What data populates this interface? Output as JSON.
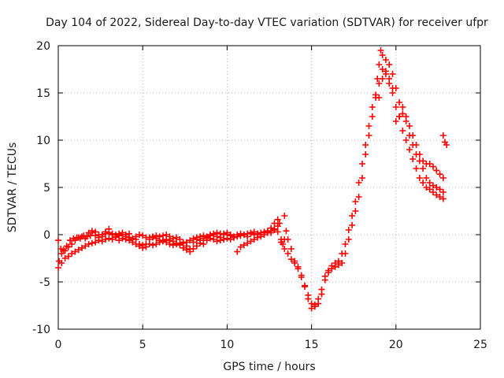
{
  "chart_data": {
    "type": "scatter",
    "title": "Day 104 of 2022, Sidereal Day-to-day VTEC variation (SDTVAR) for receiver ufpr",
    "xlabel": "GPS time / hours",
    "ylabel": "SDTVAR / TECUs",
    "xlim": [
      0,
      25
    ],
    "ylim": [
      -10,
      20
    ],
    "xticks": [
      0,
      5,
      10,
      15,
      20,
      25
    ],
    "yticks": [
      -10,
      -5,
      0,
      5,
      10,
      15,
      20
    ],
    "grid": true,
    "marker": "plus",
    "color": "#ff0000",
    "series": [
      {
        "points": [
          [
            0.0,
            -0.6
          ],
          [
            0.05,
            -2.8
          ],
          [
            0.15,
            -1.5
          ],
          [
            0.3,
            -1.6
          ],
          [
            0.5,
            -1.2
          ],
          [
            0.7,
            -0.6
          ],
          [
            0.9,
            -0.4
          ],
          [
            1.1,
            -0.3
          ],
          [
            1.3,
            -0.4
          ],
          [
            1.5,
            -0.1
          ],
          [
            1.7,
            -0.2
          ],
          [
            1.9,
            -0.1
          ],
          [
            2.0,
            0.4
          ],
          [
            2.2,
            0.3
          ],
          [
            2.4,
            0.0
          ],
          [
            2.6,
            -0.2
          ],
          [
            2.8,
            0.1
          ],
          [
            3.0,
            0.6
          ],
          [
            3.2,
            0.1
          ],
          [
            3.4,
            0.0
          ],
          [
            3.6,
            -0.1
          ],
          [
            3.8,
            0.0
          ],
          [
            4.0,
            -0.2
          ],
          [
            4.2,
            0.1
          ],
          [
            4.4,
            -0.5
          ],
          [
            4.6,
            -0.5
          ],
          [
            4.8,
            -1.0
          ],
          [
            5.0,
            -1.1
          ],
          [
            5.2,
            -1.3
          ],
          [
            5.4,
            -1.0
          ],
          [
            5.6,
            -1.1
          ],
          [
            5.8,
            -1.0
          ],
          [
            6.0,
            -0.8
          ],
          [
            6.2,
            -0.6
          ],
          [
            6.4,
            -0.5
          ],
          [
            6.6,
            -0.6
          ],
          [
            6.8,
            -0.7
          ],
          [
            7.0,
            -0.9
          ],
          [
            7.2,
            -1.1
          ],
          [
            7.4,
            -1.4
          ],
          [
            7.6,
            -1.6
          ],
          [
            7.8,
            -1.8
          ],
          [
            8.0,
            -1.5
          ],
          [
            8.2,
            -1.2
          ],
          [
            8.4,
            -0.6
          ],
          [
            8.6,
            -0.4
          ],
          [
            8.8,
            -0.3
          ],
          [
            9.0,
            -0.1
          ],
          [
            9.2,
            0.0
          ],
          [
            9.4,
            0.2
          ],
          [
            9.6,
            0.1
          ],
          [
            9.8,
            0.0
          ],
          [
            10.0,
            0.2
          ],
          [
            10.2,
            0.0
          ],
          [
            10.4,
            -0.3
          ],
          [
            10.6,
            -0.2
          ],
          [
            10.8,
            -0.1
          ],
          [
            11.0,
            0.0
          ],
          [
            11.2,
            0.1
          ],
          [
            11.4,
            0.2
          ],
          [
            11.6,
            0.0
          ],
          [
            11.8,
            0.1
          ],
          [
            12.0,
            0.2
          ],
          [
            12.2,
            0.3
          ],
          [
            12.4,
            0.4
          ],
          [
            12.6,
            0.7
          ],
          [
            12.8,
            1.2
          ],
          [
            13.0,
            1.6
          ],
          [
            13.1,
            1.2
          ],
          [
            13.2,
            -0.5
          ],
          [
            13.3,
            -1.0
          ],
          [
            13.4,
            -0.5
          ],
          [
            13.5,
            0.4
          ],
          [
            13.6,
            -0.5
          ],
          [
            13.8,
            -1.5
          ],
          [
            14.0,
            -2.8
          ],
          [
            14.2,
            -3.4
          ],
          [
            14.4,
            -4.3
          ],
          [
            14.6,
            -5.4
          ],
          [
            14.8,
            -6.4
          ],
          [
            15.0,
            -7.3
          ],
          [
            15.2,
            -7.6
          ],
          [
            15.4,
            -7.3
          ],
          [
            15.6,
            -6.3
          ],
          [
            15.8,
            -4.8
          ],
          [
            16.0,
            -4.0
          ],
          [
            16.2,
            -3.6
          ],
          [
            16.4,
            -3.4
          ],
          [
            16.6,
            -3.2
          ],
          [
            16.8,
            -3.0
          ],
          [
            17.0,
            -2.0
          ],
          [
            17.2,
            -0.5
          ],
          [
            17.4,
            1.0
          ],
          [
            17.6,
            2.5
          ],
          [
            17.8,
            4.0
          ],
          [
            18.0,
            6.0
          ],
          [
            18.2,
            8.5
          ],
          [
            18.4,
            10.5
          ],
          [
            18.6,
            12.5
          ],
          [
            18.8,
            14.5
          ],
          [
            18.9,
            16.5
          ],
          [
            19.0,
            18.0
          ],
          [
            19.1,
            19.5
          ],
          [
            19.2,
            19.0
          ],
          [
            19.4,
            17.0
          ],
          [
            19.6,
            16.0
          ],
          [
            19.8,
            15.0
          ],
          [
            20.0,
            13.5
          ],
          [
            20.2,
            12.5
          ],
          [
            20.4,
            11.0
          ],
          [
            20.6,
            10.0
          ],
          [
            20.8,
            9.0
          ],
          [
            21.0,
            8.0
          ],
          [
            21.2,
            7.0
          ],
          [
            21.4,
            6.0
          ],
          [
            21.6,
            5.5
          ],
          [
            21.8,
            5.0
          ],
          [
            22.0,
            4.8
          ],
          [
            22.2,
            4.5
          ],
          [
            22.4,
            4.2
          ],
          [
            22.6,
            4.0
          ],
          [
            22.8,
            3.8
          ]
        ]
      },
      {
        "points": [
          [
            0.0,
            -3.5
          ],
          [
            0.2,
            -3.0
          ],
          [
            0.4,
            -2.5
          ],
          [
            0.6,
            -2.3
          ],
          [
            0.8,
            -2.0
          ],
          [
            1.0,
            -1.8
          ],
          [
            1.2,
            -1.6
          ],
          [
            1.4,
            -1.4
          ],
          [
            1.6,
            -1.2
          ],
          [
            1.8,
            -1.0
          ],
          [
            2.0,
            -0.9
          ],
          [
            2.2,
            -0.8
          ],
          [
            2.4,
            -0.6
          ],
          [
            2.6,
            -0.7
          ],
          [
            2.8,
            -0.5
          ],
          [
            3.0,
            -0.4
          ],
          [
            3.2,
            -0.5
          ],
          [
            3.4,
            -0.3
          ],
          [
            3.6,
            -0.6
          ],
          [
            3.8,
            -0.4
          ],
          [
            4.0,
            -0.5
          ],
          [
            4.2,
            -0.6
          ],
          [
            4.4,
            -0.4
          ],
          [
            4.6,
            -0.2
          ],
          [
            4.8,
            0.0
          ],
          [
            5.0,
            -0.1
          ],
          [
            5.2,
            -0.3
          ],
          [
            5.4,
            -0.3
          ],
          [
            5.6,
            -0.3
          ],
          [
            5.8,
            -0.4
          ],
          [
            6.0,
            -0.6
          ],
          [
            6.2,
            -0.7
          ],
          [
            6.4,
            -0.8
          ],
          [
            6.6,
            -1.0
          ],
          [
            6.8,
            -1.1
          ],
          [
            7.0,
            -1.0
          ],
          [
            7.2,
            -1.0
          ],
          [
            7.4,
            -0.9
          ],
          [
            7.6,
            -0.8
          ],
          [
            7.8,
            -0.6
          ],
          [
            8.0,
            -0.4
          ],
          [
            8.2,
            -0.3
          ],
          [
            8.4,
            -0.2
          ],
          [
            8.6,
            -0.1
          ],
          [
            8.8,
            -0.2
          ],
          [
            9.0,
            -0.4
          ],
          [
            9.2,
            -0.5
          ],
          [
            9.4,
            -0.7
          ],
          [
            9.6,
            -0.6
          ],
          [
            9.8,
            -0.5
          ],
          [
            10.0,
            -0.4
          ],
          [
            10.2,
            -0.5
          ],
          [
            10.4,
            -0.3
          ],
          [
            10.6,
            -1.8
          ],
          [
            10.8,
            -1.3
          ],
          [
            11.0,
            -1.1
          ],
          [
            11.2,
            -0.9
          ],
          [
            11.4,
            -0.7
          ],
          [
            11.6,
            -0.5
          ],
          [
            11.8,
            -0.3
          ],
          [
            12.0,
            -0.2
          ],
          [
            12.2,
            0.0
          ],
          [
            12.4,
            0.2
          ],
          [
            12.6,
            0.4
          ],
          [
            12.8,
            0.5
          ],
          [
            13.0,
            0.3
          ],
          [
            13.2,
            -0.8
          ],
          [
            13.4,
            -1.5
          ],
          [
            13.6,
            -2.0
          ],
          [
            13.8,
            -2.6
          ],
          [
            14.0,
            -3.0
          ],
          [
            14.2,
            -3.6
          ],
          [
            14.4,
            -4.5
          ],
          [
            14.6,
            -5.5
          ],
          [
            14.8,
            -6.8
          ],
          [
            15.0,
            -7.8
          ],
          [
            15.2,
            -7.4
          ],
          [
            15.4,
            -6.8
          ],
          [
            15.6,
            -5.8
          ],
          [
            15.8,
            -4.4
          ],
          [
            16.0,
            -3.8
          ],
          [
            16.2,
            -3.3
          ],
          [
            16.4,
            -3.0
          ],
          [
            16.6,
            -2.8
          ],
          [
            16.8,
            -2.0
          ],
          [
            17.0,
            -1.0
          ],
          [
            17.2,
            0.5
          ],
          [
            17.4,
            2.0
          ],
          [
            17.6,
            3.5
          ],
          [
            17.8,
            5.5
          ],
          [
            18.0,
            7.5
          ],
          [
            18.2,
            9.5
          ],
          [
            18.4,
            11.5
          ],
          [
            18.6,
            13.5
          ],
          [
            18.8,
            14.8
          ],
          [
            19.0,
            16.0
          ],
          [
            19.2,
            17.5
          ],
          [
            19.4,
            18.5
          ],
          [
            19.6,
            18.0
          ],
          [
            19.8,
            17.0
          ],
          [
            20.0,
            15.5
          ],
          [
            20.2,
            14.0
          ],
          [
            20.4,
            13.5
          ],
          [
            20.6,
            12.5
          ],
          [
            20.8,
            11.5
          ],
          [
            21.0,
            10.5
          ],
          [
            21.2,
            9.5
          ],
          [
            21.4,
            8.5
          ],
          [
            21.6,
            7.8
          ],
          [
            21.8,
            7.5
          ],
          [
            22.0,
            7.5
          ],
          [
            22.2,
            7.2
          ],
          [
            22.4,
            6.8
          ],
          [
            22.6,
            6.4
          ],
          [
            22.8,
            6.0
          ]
        ]
      },
      {
        "points": [
          [
            0.2,
            -2.0
          ],
          [
            0.4,
            -1.7
          ],
          [
            0.6,
            -1.3
          ],
          [
            0.8,
            -1.0
          ],
          [
            1.0,
            -0.6
          ],
          [
            1.2,
            -0.3
          ],
          [
            1.4,
            -0.2
          ],
          [
            1.6,
            -0.4
          ],
          [
            1.8,
            0.2
          ],
          [
            2.0,
            0.2
          ],
          [
            2.2,
            -0.1
          ],
          [
            2.4,
            -0.3
          ],
          [
            2.6,
            0.0
          ],
          [
            2.8,
            0.3
          ],
          [
            3.0,
            0.2
          ],
          [
            3.2,
            0.0
          ],
          [
            3.4,
            -0.2
          ],
          [
            3.6,
            0.1
          ],
          [
            3.8,
            0.2
          ],
          [
            4.0,
            0.0
          ],
          [
            4.2,
            -0.3
          ],
          [
            4.4,
            -0.8
          ],
          [
            4.6,
            -1.0
          ],
          [
            4.8,
            -1.2
          ],
          [
            5.0,
            -1.4
          ],
          [
            5.2,
            -1.0
          ],
          [
            5.4,
            -0.5
          ],
          [
            5.6,
            -0.2
          ],
          [
            5.8,
            -0.1
          ],
          [
            6.0,
            -0.2
          ],
          [
            6.2,
            -0.1
          ],
          [
            6.4,
            0.0
          ],
          [
            6.6,
            -0.2
          ],
          [
            6.8,
            -0.4
          ],
          [
            7.0,
            -0.3
          ],
          [
            7.2,
            -0.5
          ],
          [
            7.4,
            -0.8
          ],
          [
            7.6,
            -1.2
          ],
          [
            7.8,
            -1.5
          ],
          [
            8.0,
            -0.8
          ],
          [
            8.2,
            -0.5
          ],
          [
            8.4,
            -0.9
          ],
          [
            8.6,
            -1.0
          ],
          [
            8.8,
            -0.6
          ],
          [
            9.0,
            0.0
          ],
          [
            9.2,
            0.1
          ],
          [
            9.4,
            -0.2
          ],
          [
            9.6,
            -0.3
          ],
          [
            9.8,
            0.1
          ],
          [
            10.0,
            0.0
          ],
          [
            10.2,
            -0.1
          ],
          [
            10.4,
            -0.2
          ],
          [
            10.6,
            0.0
          ],
          [
            10.8,
            0.1
          ],
          [
            11.0,
            0.0
          ],
          [
            11.2,
            -0.2
          ],
          [
            11.4,
            0.1
          ],
          [
            11.6,
            0.3
          ],
          [
            11.8,
            0.1
          ],
          [
            12.0,
            0.0
          ],
          [
            12.2,
            0.2
          ],
          [
            12.4,
            0.3
          ],
          [
            12.6,
            0.2
          ],
          [
            12.8,
            0.6
          ],
          [
            13.0,
            0.9
          ],
          [
            13.4,
            2.0
          ],
          [
            19.0,
            14.5
          ],
          [
            19.2,
            16.5
          ],
          [
            19.4,
            17.3
          ],
          [
            19.6,
            16.5
          ],
          [
            19.8,
            15.5
          ],
          [
            20.0,
            12.0
          ],
          [
            20.2,
            12.5
          ],
          [
            20.4,
            12.8
          ],
          [
            20.6,
            12.0
          ],
          [
            20.8,
            10.5
          ],
          [
            21.0,
            9.5
          ],
          [
            21.2,
            8.5
          ],
          [
            21.4,
            7.8
          ],
          [
            21.6,
            7.0
          ],
          [
            21.8,
            6.0
          ],
          [
            22.0,
            5.5
          ],
          [
            22.2,
            5.2
          ],
          [
            22.4,
            5.0
          ],
          [
            22.6,
            4.8
          ],
          [
            22.8,
            4.5
          ],
          [
            22.8,
            10.5
          ],
          [
            22.9,
            9.8
          ],
          [
            23.0,
            9.5
          ]
        ]
      }
    ]
  }
}
